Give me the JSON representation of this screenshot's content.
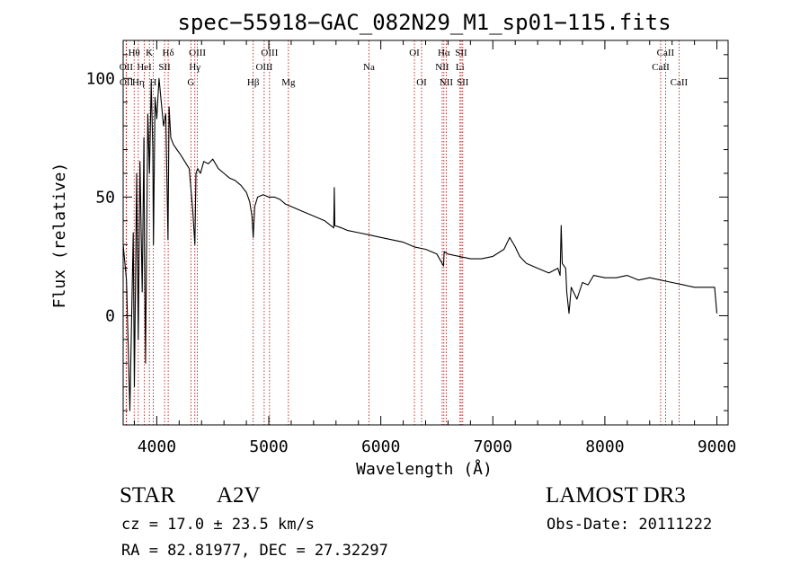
{
  "chart_data": {
    "type": "line",
    "title": "spec−55918−GAC_082N29_M1_sp01−115.fits",
    "xlabel": "Wavelength (Å)",
    "ylabel": "Flux (relative)",
    "xlim": [
      3700,
      9100
    ],
    "ylim": [
      -46,
      116
    ],
    "xticks": [
      4000,
      5000,
      6000,
      7000,
      8000,
      9000
    ],
    "yticks": [
      0,
      50,
      100
    ],
    "grid": false,
    "series": [
      {
        "name": "spectrum",
        "x": [
          3700,
          3730,
          3760,
          3790,
          3800,
          3820,
          3835,
          3850,
          3870,
          3885,
          3890,
          3900,
          3920,
          3935,
          3950,
          3965,
          3970,
          3985,
          4000,
          4020,
          4040,
          4060,
          4080,
          4100,
          4110,
          4125,
          4150,
          4180,
          4210,
          4250,
          4290,
          4320,
          4340,
          4350,
          4365,
          4390,
          4420,
          4460,
          4500,
          4550,
          4600,
          4650,
          4700,
          4750,
          4800,
          4830,
          4850,
          4861,
          4875,
          4900,
          4950,
          5000,
          5050,
          5100,
          5150,
          5200,
          5300,
          5400,
          5500,
          5580,
          5585,
          5590,
          5650,
          5700,
          5800,
          5900,
          6000,
          6100,
          6200,
          6300,
          6400,
          6500,
          6560,
          6565,
          6600,
          6700,
          6800,
          6900,
          7000,
          7100,
          7150,
          7200,
          7240,
          7260,
          7300,
          7400,
          7500,
          7580,
          7600,
          7610,
          7620,
          7650,
          7660,
          7680,
          7700,
          7750,
          7800,
          7850,
          7900,
          8000,
          8100,
          8200,
          8300,
          8400,
          8500,
          8600,
          8700,
          8800,
          8900,
          8980,
          9000
        ],
        "y": [
          30,
          15,
          -40,
          35,
          -30,
          60,
          -10,
          65,
          10,
          75,
          30,
          -20,
          85,
          60,
          98,
          70,
          30,
          92,
          83,
          100,
          90,
          80,
          85,
          32,
          88,
          75,
          72,
          70,
          68,
          65,
          62,
          45,
          30,
          60,
          62,
          60,
          65,
          64,
          66,
          62,
          60,
          58,
          57,
          55,
          52,
          48,
          42,
          33,
          46,
          50,
          51,
          50,
          50,
          49,
          47,
          46,
          44,
          42,
          40,
          37,
          54,
          38,
          37,
          36,
          35,
          34,
          33,
          32,
          31,
          29,
          28,
          26,
          21,
          27,
          26,
          25,
          24,
          24,
          25,
          28,
          33,
          29,
          25,
          24,
          22,
          20,
          18,
          20,
          17,
          38,
          22,
          20,
          10,
          1,
          12,
          7,
          14,
          13,
          17,
          16,
          16,
          17,
          15,
          16,
          15,
          14,
          13,
          12,
          12,
          12,
          1
        ]
      }
    ],
    "line_markers": [
      {
        "label": "Hθ",
        "wavelength": 3798,
        "row": 1
      },
      {
        "label": "OII",
        "wavelength": 3727,
        "row": 2
      },
      {
        "label": "OII",
        "wavelength": 3729,
        "row": 3
      },
      {
        "label": "HeI",
        "wavelength": 3889,
        "row": 2
      },
      {
        "label": "Hη",
        "wavelength": 3835,
        "row": 3
      },
      {
        "label": "K",
        "wavelength": 3934,
        "row": 1
      },
      {
        "label": "H",
        "wavelength": 3969,
        "row": 3
      },
      {
        "label": "Hδ",
        "wavelength": 4102,
        "row": 1
      },
      {
        "label": "SII",
        "wavelength": 4070,
        "row": 2
      },
      {
        "label": "OIII",
        "wavelength": 4363,
        "row": 1
      },
      {
        "label": "Hγ",
        "wavelength": 4340,
        "row": 2
      },
      {
        "label": "G",
        "wavelength": 4305,
        "row": 3
      },
      {
        "label": "OIII",
        "wavelength": 5007,
        "row": 1
      },
      {
        "label": "OIII",
        "wavelength": 4959,
        "row": 2
      },
      {
        "label": "Hβ",
        "wavelength": 4861,
        "row": 3
      },
      {
        "label": "Mg",
        "wavelength": 5175,
        "row": 3
      },
      {
        "label": "Na",
        "wavelength": 5894,
        "row": 2
      },
      {
        "label": "OI",
        "wavelength": 6300,
        "row": 1
      },
      {
        "label": "OI",
        "wavelength": 6364,
        "row": 3
      },
      {
        "label": "Hα",
        "wavelength": 6563,
        "row": 1
      },
      {
        "label": "NII",
        "wavelength": 6548,
        "row": 2
      },
      {
        "label": "NII",
        "wavelength": 6584,
        "row": 3
      },
      {
        "label": "SII",
        "wavelength": 6717,
        "row": 1
      },
      {
        "label": "Li",
        "wavelength": 6707,
        "row": 2
      },
      {
        "label": "SII",
        "wavelength": 6731,
        "row": 3
      },
      {
        "label": "CaII",
        "wavelength": 8542,
        "row": 1
      },
      {
        "label": "CaII",
        "wavelength": 8498,
        "row": 2
      },
      {
        "label": "CaII",
        "wavelength": 8662,
        "row": 3
      }
    ]
  },
  "info": {
    "class": "STAR",
    "subclass": "A2V",
    "survey": "LAMOST DR3",
    "cz": "cz = 17.0 ± 23.5 km/s",
    "obs_date": "Obs-Date: 20111222",
    "coords": "RA =  82.81977, DEC =  27.32297"
  },
  "colors": {
    "line": "#000000",
    "marker": "#b00000",
    "axis": "#000000",
    "background": "#ffffff"
  }
}
